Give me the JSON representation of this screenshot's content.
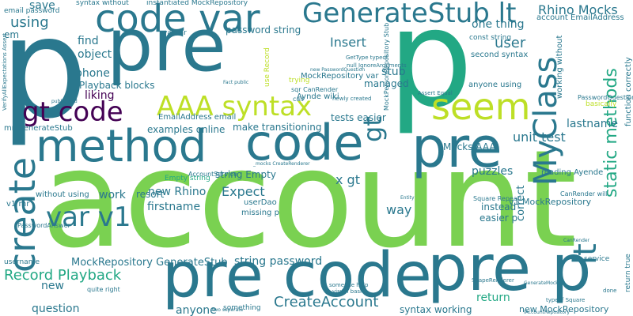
{
  "colors": {
    "teal": "#2a788e",
    "green": "#22a884",
    "lime": "#7ad151",
    "yellowgreen": "#bddf26",
    "navy": "#414487",
    "purple": "#440154",
    "blue": "#355f8d"
  },
  "words": [
    "account",
    "p",
    "pre",
    "code",
    "method",
    "code var",
    "pre code",
    "pre p",
    "create",
    "seem",
    "MyClass",
    "AAA syntax",
    "gt code",
    "var v1",
    "lt",
    "GenerateStub lt",
    "gt",
    "static methods",
    "Record Playback",
    "CreateAccount",
    "using",
    "save",
    "em",
    "find",
    "object",
    "phone",
    "liking",
    "Rhino Mocks",
    "user",
    "Insert",
    "stub",
    "one thing",
    "unit test",
    "lastname",
    "x gt",
    "way",
    "Expect",
    "firstname",
    "new Rhino",
    "return",
    "correct",
    "puzzles",
    "work",
    "resort",
    "string Empty",
    "string password",
    "password string",
    "MockRepository GenerateStub",
    "question",
    "anyone",
    "new",
    "managed",
    "new MockRepository",
    "v1 MockRepository",
    "Playback blocks",
    "examples online",
    "make transitioning",
    "tests easier",
    "Mocks AAA",
    "syntax working",
    "instead",
    "easier p",
    "mr GenerateStub",
    "without using",
    "v1 mr",
    "EmailAddress email",
    "missing p",
    "userDao",
    "Aynde wiki",
    "MockRepository var",
    "reading Ayende",
    "second syntax",
    "anyone using",
    "working without",
    "function correctly",
    "account EmailAddress",
    "email password",
    "syntax without",
    "instantiated MockRepository",
    "var mr",
    "const string",
    "AccountService",
    "Empty string",
    "username",
    "Square Repeat",
    "CanRender will",
    "basically",
    "PasswordQuestion",
    "PasswordAnswer",
    "something",
    "quite right",
    "MockPersonRepository Stub",
    "sqr CanRender",
    "GetType typeof",
    "trying",
    "use Record",
    "call",
    "newly created",
    "null IgnoreArguments",
    "typeof Square",
    "Assert Equal",
    "someone help",
    "visual basic",
    "ShapeRenderer",
    "Entity",
    "service",
    "return true",
    "done",
    "two seperate",
    "IAccountRepository",
    "VerifyAllExpectations Assert",
    "CanRender",
    "GenerateMock",
    "_mocks CreateRenderer",
    "Fact public",
    "public void",
    "new PasswordQuestion"
  ]
}
